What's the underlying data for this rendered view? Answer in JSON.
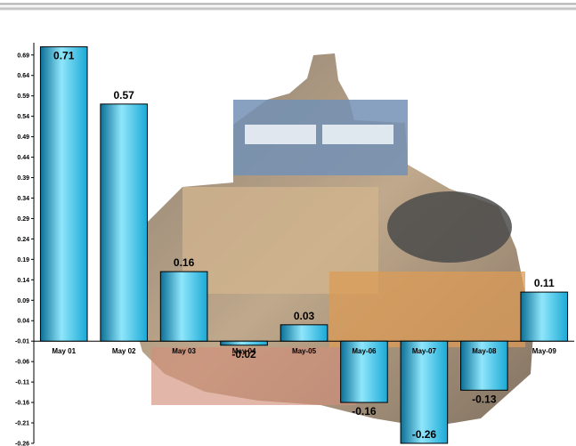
{
  "chart_data": {
    "type": "bar",
    "title": "",
    "xlabel": "",
    "ylabel": "",
    "categories": [
      "May 01",
      "May 02",
      "May 03",
      "May 04",
      "May-05",
      "May-06",
      "May-07",
      "May-08",
      "May-09"
    ],
    "values": [
      0.71,
      0.57,
      0.16,
      -0.02,
      0.03,
      -0.16,
      -0.26,
      -0.13,
      0.11
    ],
    "data_labels": [
      "0.71",
      "0.57",
      "0.16",
      "-0.02",
      "0.03",
      "-0.16",
      "-0.26",
      "-0.13",
      "0.11"
    ],
    "yticks": [
      0.69,
      0.64,
      0.59,
      0.54,
      0.49,
      0.44,
      0.39,
      0.34,
      0.29,
      0.24,
      0.19,
      0.14,
      0.09,
      0.04,
      -0.01,
      -0.06,
      -0.11,
      -0.16,
      -0.21,
      -0.26
    ],
    "ytick_labels": [
      "0.69",
      "0.64",
      "0.59",
      "0.54",
      "0.49",
      "0.44",
      "0.39",
      "0.34",
      "0.29",
      "0.24",
      "0.19",
      "0.14",
      "0.09",
      "0.04",
      "-0.01",
      "-0.06",
      "-0.11",
      "-0.16",
      "-0.21",
      "-0.26"
    ],
    "ylim": [
      -0.26,
      0.72
    ],
    "grid": false,
    "legend": "none",
    "colors": {
      "bar": "#1aa9d6",
      "bar_light": "#8fe6fb",
      "bar_dark": "#0b6f96",
      "outline": "#000000"
    }
  }
}
